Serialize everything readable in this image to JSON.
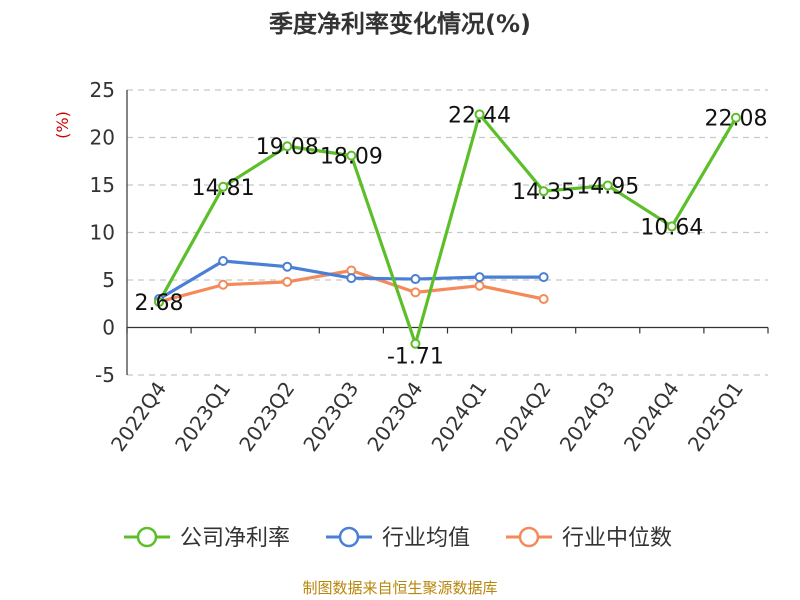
{
  "chart_data": {
    "type": "line",
    "title": "季度净利率变化情况(%)",
    "ylabel": "(%)",
    "categories": [
      "2022Q4",
      "2023Q1",
      "2023Q2",
      "2023Q3",
      "2023Q4",
      "2024Q1",
      "2024Q2",
      "2024Q3",
      "2024Q4",
      "2025Q1"
    ],
    "yticks": [
      -5,
      0,
      5,
      10,
      15,
      20,
      25
    ],
    "ylim": [
      -5,
      25
    ],
    "grid": true,
    "legend_position": "bottom",
    "series": [
      {
        "name": "公司净利率",
        "color": "#5cbf2a",
        "values": [
          2.68,
          14.81,
          19.08,
          18.09,
          -1.71,
          22.44,
          14.35,
          14.95,
          10.64,
          22.08
        ],
        "labels": [
          "2.68",
          "14.81",
          "19.08",
          "18.09",
          "-1.71",
          "22.44",
          "14.35",
          "14.95",
          "10.64",
          "22.08"
        ]
      },
      {
        "name": "行业均值",
        "color": "#4a7fd6",
        "values": [
          3.0,
          7.0,
          6.4,
          5.2,
          5.1,
          5.3,
          5.3,
          null,
          null,
          null
        ]
      },
      {
        "name": "行业中位数",
        "color": "#f48a5a",
        "values": [
          2.7,
          4.5,
          4.8,
          6.0,
          3.7,
          4.4,
          3.0,
          null,
          null,
          null
        ]
      }
    ]
  },
  "source": "制图数据来自恒生聚源数据库"
}
